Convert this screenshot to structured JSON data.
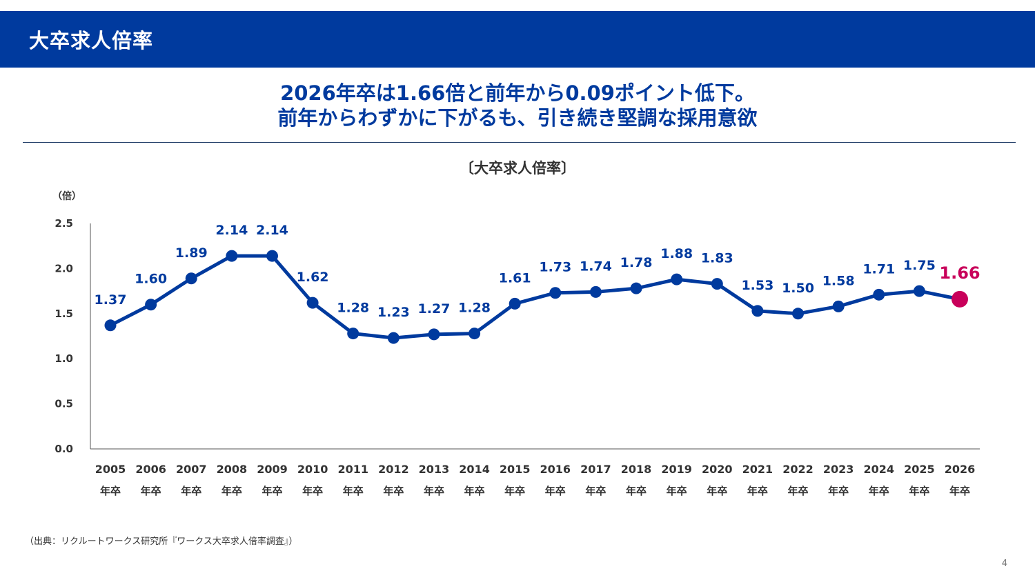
{
  "header": {
    "title": "大卒求人倍率"
  },
  "headline": {
    "line1": "2026年卒は1.66倍と前年から0.09ポイント低下。",
    "line2": "前年からわずかに下がるも、引き続き堅調な採用意欲"
  },
  "chart_data": {
    "type": "line",
    "title": "〔大卒求人倍率〕",
    "ylabel": "（倍）",
    "xlabel": "",
    "x_suffix": "年卒",
    "categories": [
      "2005",
      "2006",
      "2007",
      "2008",
      "2009",
      "2010",
      "2011",
      "2012",
      "2013",
      "2014",
      "2015",
      "2016",
      "2017",
      "2018",
      "2019",
      "2020",
      "2021",
      "2022",
      "2023",
      "2024",
      "2025",
      "2026"
    ],
    "values": [
      1.37,
      1.6,
      1.89,
      2.14,
      2.14,
      1.62,
      1.28,
      1.23,
      1.27,
      1.28,
      1.61,
      1.73,
      1.74,
      1.78,
      1.88,
      1.83,
      1.53,
      1.5,
      1.58,
      1.71,
      1.75,
      1.66
    ],
    "ylim": [
      0,
      2.5
    ],
    "yticks": [
      "0.0",
      "0.5",
      "1.0",
      "1.5",
      "2.0",
      "2.5"
    ],
    "highlight_index": 21,
    "grid": false,
    "colors": {
      "line": "#003a9e",
      "highlight": "#c8005a"
    }
  },
  "footer": {
    "source": "（出典：リクルートワークス研究所『ワークス大卒求人倍率調査』）",
    "page_number": "4"
  }
}
